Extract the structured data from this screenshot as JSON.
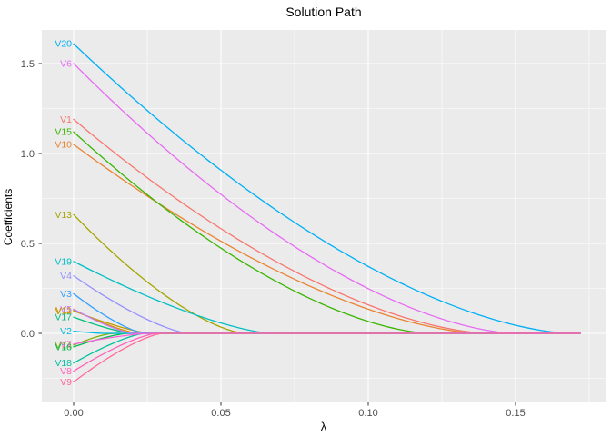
{
  "chart_data": {
    "type": "line",
    "title": "Solution Path",
    "xlabel": "λ",
    "ylabel": "Coefficients",
    "x_ticks": [
      0.0,
      0.05,
      0.1,
      0.15
    ],
    "x_tick_labels": [
      "0.00",
      "0.05",
      "0.10",
      "0.15"
    ],
    "x_minor_ticks": [
      0.025,
      0.075,
      0.125,
      0.175
    ],
    "y_ticks": [
      0.0,
      0.5,
      1.0,
      1.5
    ],
    "y_tick_labels": [
      "0.0",
      "0.5",
      "1.0",
      "1.5"
    ],
    "y_minor_ticks": [
      -0.25,
      0.25,
      0.75,
      1.25
    ],
    "xlim": [
      -0.011,
      0.181
    ],
    "ylim": [
      -0.384,
      1.687
    ],
    "lambda_max": 0.172,
    "grid": true,
    "legend_position": "none",
    "label_note": "each series labeled at left edge at its lambda=0 coefficient",
    "series": [
      {
        "name": "V1",
        "color": "#F8766D",
        "start": 1.19,
        "zero_at": 0.141
      },
      {
        "name": "V10",
        "color": "#EA8331",
        "start": 1.05,
        "zero_at": 0.138
      },
      {
        "name": "V11",
        "color": "#D89000",
        "start": 0.13,
        "zero_at": 0.022
      },
      {
        "name": "V12",
        "color": "#C09B00",
        "start": 0.125,
        "zero_at": 0.026
      },
      {
        "name": "V13",
        "color": "#A3A500",
        "start": 0.66,
        "zero_at": 0.058
      },
      {
        "name": "V14",
        "color": "#7CAE00",
        "start": -0.065,
        "zero_at": 0.013
      },
      {
        "name": "V15",
        "color": "#39B600",
        "start": 1.12,
        "zero_at": 0.121
      },
      {
        "name": "V16",
        "color": "#00BB4E",
        "start": -0.075,
        "zero_at": 0.018
      },
      {
        "name": "V17",
        "color": "#00BF7D",
        "start": 0.09,
        "zero_at": 0.02
      },
      {
        "name": "V18",
        "color": "#00C1A3",
        "start": -0.165,
        "zero_at": 0.024
      },
      {
        "name": "V19",
        "color": "#00BFC4",
        "start": 0.4,
        "zero_at": 0.067
      },
      {
        "name": "V2",
        "color": "#00BAE0",
        "start": 0.012,
        "zero_at": 0.01
      },
      {
        "name": "V20",
        "color": "#00B0F6",
        "start": 1.61,
        "zero_at": 0.169
      },
      {
        "name": "V3",
        "color": "#35A2FF",
        "start": 0.22,
        "zero_at": 0.024
      },
      {
        "name": "V4",
        "color": "#9590FF",
        "start": 0.32,
        "zero_at": 0.039
      },
      {
        "name": "V5",
        "color": "#C77CFF",
        "start": 0.135,
        "zero_at": 0.02
      },
      {
        "name": "V6",
        "color": "#E76BF3",
        "start": 1.5,
        "zero_at": 0.15
      },
      {
        "name": "V7",
        "color": "#FA62DB",
        "start": -0.06,
        "zero_at": 0.025
      },
      {
        "name": "V8",
        "color": "#FF62BC",
        "start": -0.21,
        "zero_at": 0.028
      },
      {
        "name": "V9",
        "color": "#FF6A98",
        "start": -0.27,
        "zero_at": 0.03
      }
    ],
    "colors": {
      "panel_background": "#EBEBEB",
      "grid_line": "#FFFFFF",
      "tick_mark": "#333333",
      "tick_label": "#4D4D4D",
      "title_text": "#000000"
    }
  }
}
